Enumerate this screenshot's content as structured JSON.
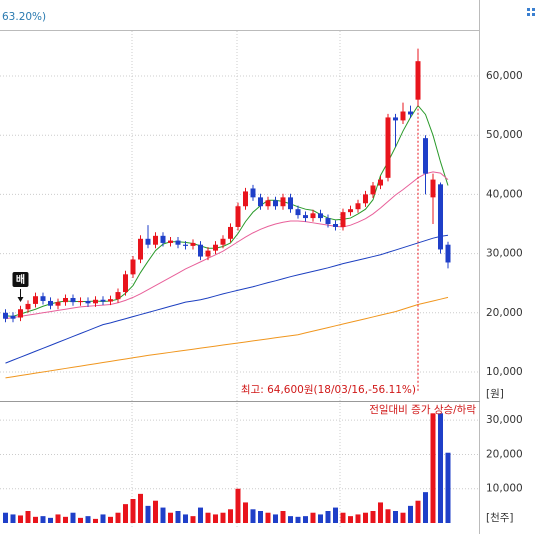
{
  "header_text": "63.20%)",
  "chart_data": [
    {
      "type": "candlestick",
      "open": [
        20000,
        19500,
        19200,
        20600,
        21500,
        22800,
        22000,
        21200,
        21800,
        22500,
        21800,
        22000,
        21600,
        22200,
        21900,
        22300,
        23500,
        26500,
        29000,
        32500,
        31500,
        33000,
        31800,
        32200,
        31500,
        31300,
        31500,
        29500,
        30500,
        31500,
        32500,
        34500,
        38000,
        41000,
        39500,
        38000,
        39000,
        38000,
        39500,
        37500,
        36500,
        36000,
        36800,
        36000,
        35000,
        34500,
        37000,
        37500,
        38500,
        40000,
        41500,
        42800,
        53000,
        52500,
        54000,
        56000,
        49500,
        39500,
        41700,
        31500
      ],
      "high": [
        20600,
        20100,
        21200,
        22100,
        23400,
        23400,
        22600,
        22400,
        23100,
        23100,
        22600,
        22600,
        22800,
        22800,
        22900,
        24100,
        27100,
        29600,
        33100,
        34800,
        33600,
        33600,
        32800,
        32800,
        32100,
        32400,
        32100,
        31100,
        32100,
        33100,
        35100,
        38600,
        41100,
        41600,
        40100,
        39600,
        39600,
        40100,
        40100,
        38100,
        37100,
        37400,
        37400,
        36600,
        35600,
        37600,
        38100,
        39100,
        40600,
        42100,
        43100,
        53600,
        53600,
        55500,
        55000,
        64600,
        50000,
        43500,
        42000,
        32000
      ],
      "low": [
        18400,
        18400,
        18600,
        20000,
        20900,
        21400,
        20600,
        20600,
        21200,
        21200,
        21200,
        21000,
        21000,
        21300,
        21300,
        21700,
        22900,
        25900,
        28400,
        30900,
        30900,
        31200,
        31200,
        30900,
        30700,
        30700,
        28900,
        28900,
        29900,
        30900,
        31900,
        33900,
        37400,
        38900,
        37400,
        37400,
        37400,
        37400,
        36900,
        35900,
        35400,
        35400,
        35400,
        34400,
        33900,
        33900,
        36400,
        36900,
        37900,
        39400,
        40900,
        42200,
        48000,
        51900,
        52900,
        55000,
        40000,
        35000,
        30000,
        27500
      ],
      "close": [
        19000,
        19000,
        20600,
        21500,
        22800,
        22000,
        21200,
        21800,
        22500,
        21800,
        22000,
        21600,
        22200,
        21900,
        22300,
        23500,
        26500,
        29000,
        32500,
        31500,
        33000,
        31800,
        32200,
        31500,
        31300,
        31800,
        29500,
        30500,
        31500,
        32500,
        34500,
        38000,
        40500,
        39500,
        38000,
        39000,
        38000,
        39500,
        37500,
        36500,
        36000,
        36800,
        36000,
        35000,
        34500,
        37000,
        37500,
        38500,
        40000,
        41500,
        42500,
        53000,
        52500,
        54000,
        53500,
        62500,
        43500,
        42500,
        30700,
        28500
      ],
      "series": [
        {
          "color": "#2a9a2a",
          "values": [
            19500,
            19400,
            19800,
            20200,
            20600,
            21100,
            21500,
            21800,
            22000,
            21900,
            21900,
            21900,
            22000,
            21900,
            22000,
            22300,
            23300,
            24600,
            26800,
            28700,
            30500,
            31600,
            32000,
            32000,
            31900,
            31700,
            31300,
            30900,
            30900,
            31200,
            31800,
            33400,
            35400,
            37000,
            38100,
            39000,
            39000,
            38800,
            38400,
            37900,
            37500,
            37300,
            36600,
            36000,
            35700,
            35800,
            36000,
            36700,
            37500,
            39100,
            43200,
            45500,
            48000,
            50700,
            53000,
            55000,
            53500,
            50000,
            45500,
            41500
          ]
        },
        {
          "color": "#e8609a",
          "values": [
            19000,
            19200,
            19400,
            19600,
            19800,
            20000,
            20200,
            20400,
            20600,
            20800,
            21000,
            21100,
            21200,
            21300,
            21400,
            21700,
            22100,
            22600,
            23200,
            23900,
            24600,
            25300,
            26000,
            26700,
            27400,
            28000,
            28600,
            29200,
            29800,
            30400,
            31200,
            32000,
            32800,
            33500,
            34100,
            34600,
            35000,
            35300,
            35500,
            35500,
            35400,
            35200,
            35000,
            34800,
            34600,
            34500,
            34800,
            35300,
            35900,
            36700,
            37700,
            38800,
            39900,
            40800,
            41800,
            42800,
            43500,
            43800,
            43600,
            42500
          ]
        },
        {
          "color": "#1c3fc0",
          "values": [
            11500,
            12000,
            12500,
            13000,
            13500,
            14000,
            14500,
            15000,
            15500,
            16000,
            16500,
            17000,
            17500,
            18000,
            18300,
            18650,
            19000,
            19350,
            19700,
            20050,
            20400,
            20750,
            21100,
            21450,
            21800,
            22000,
            22200,
            22500,
            22850,
            23200,
            23500,
            23800,
            24100,
            24400,
            24750,
            25100,
            25400,
            25750,
            26100,
            26400,
            26700,
            27000,
            27300,
            27600,
            27950,
            28300,
            28600,
            28900,
            29200,
            29500,
            29800,
            30200,
            30600,
            31000,
            31400,
            31800,
            32200,
            32600,
            32900,
            33100
          ]
        },
        {
          "color": "#f0961e",
          "values": [
            9000,
            9200,
            9400,
            9600,
            9800,
            10000,
            10200,
            10400,
            10600,
            10800,
            11000,
            11200,
            11400,
            11600,
            11800,
            12000,
            12200,
            12400,
            12600,
            12800,
            12975,
            13150,
            13325,
            13500,
            13675,
            13850,
            14025,
            14200,
            14375,
            14550,
            14725,
            14900,
            15075,
            15250,
            15425,
            15600,
            15775,
            15950,
            16125,
            16300,
            16600,
            16900,
            17200,
            17500,
            17800,
            18100,
            18400,
            18700,
            19000,
            19300,
            19600,
            19900,
            20200,
            20600,
            21000,
            21400,
            21700,
            22000,
            22300,
            22600
          ]
        }
      ],
      "ylim": [
        5100,
        67600
      ],
      "yticks": [
        {
          "value": 10000,
          "label": "10,000"
        },
        {
          "value": 20000,
          "label": "20,000"
        },
        {
          "value": 30000,
          "label": "30,000"
        },
        {
          "value": 40000,
          "label": "40,000"
        },
        {
          "value": 50000,
          "label": "50,000"
        },
        {
          "value": 60000,
          "label": "60,000"
        }
      ],
      "unit_label": "[원]",
      "annotation": "최고: 64,600원(18/03/16,-56.11%)",
      "marker_label": "배",
      "up_color": "#e8141c",
      "down_color": "#1f3fc8",
      "grid": true
    },
    {
      "type": "bar",
      "values": [
        3000,
        2500,
        2200,
        3500,
        1800,
        2000,
        1500,
        2500,
        1800,
        3000,
        1500,
        2000,
        1200,
        2500,
        1800,
        3000,
        5500,
        7000,
        8500,
        5000,
        6500,
        4500,
        3000,
        3500,
        2500,
        2000,
        4500,
        3000,
        2500,
        3000,
        4000,
        10000,
        6000,
        4000,
        3500,
        3000,
        2500,
        3500,
        2000,
        1800,
        2000,
        3000,
        2500,
        3500,
        4500,
        3000,
        2000,
        2500,
        3000,
        3500,
        6000,
        4000,
        3500,
        3000,
        5000,
        6500,
        9000,
        32000,
        32000,
        20500
      ],
      "ylim": [
        0,
        35300
      ],
      "yticks": [
        {
          "value": 10000,
          "label": "10,000"
        },
        {
          "value": 20000,
          "label": "20,000"
        },
        {
          "value": 30000,
          "label": "30,000"
        }
      ],
      "unit_label": "[천주]",
      "legend_text": "전일대비 증가 상승/하락",
      "up_color": "#e8141c",
      "down_color": "#1f3fc8",
      "grid": true
    }
  ]
}
